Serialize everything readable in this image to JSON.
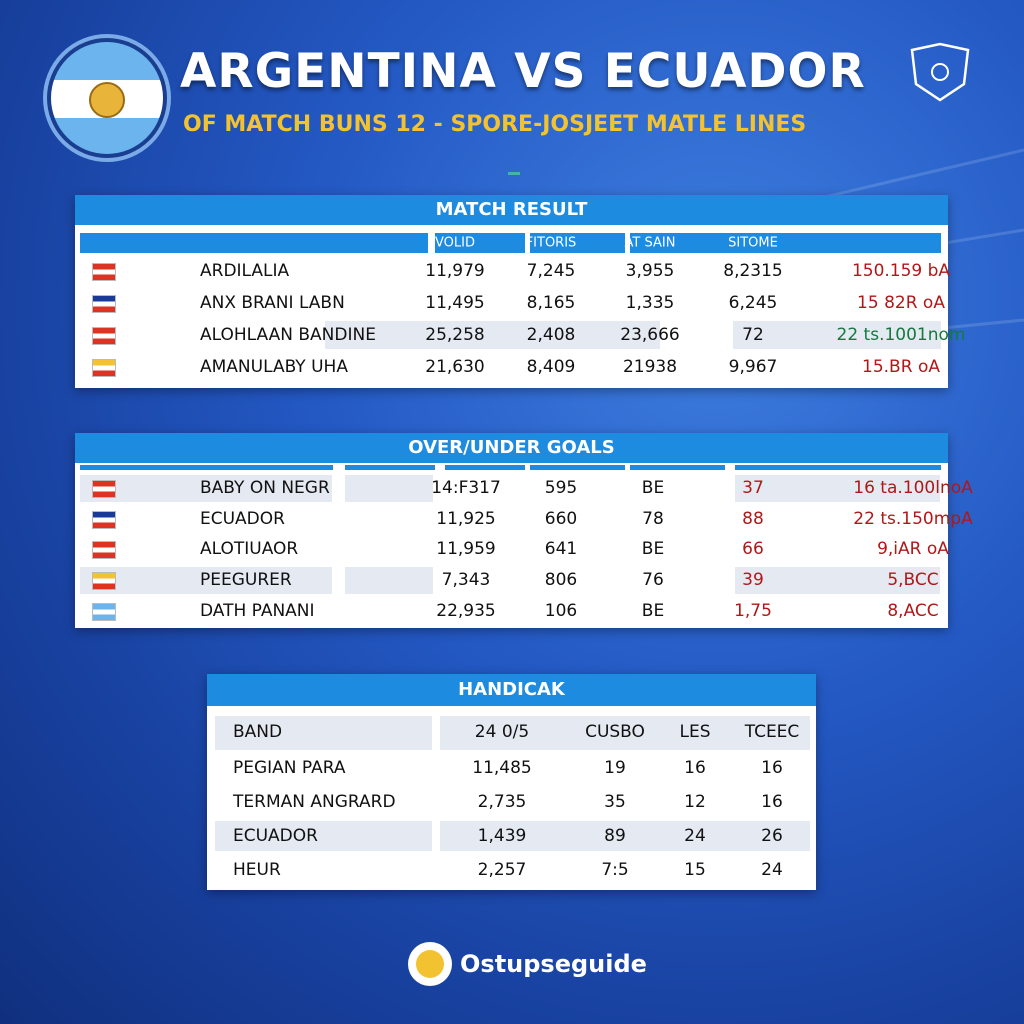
{
  "header": {
    "title": "ARGENTINA VS ECUADOR",
    "subtitle": "OF MATCH BUNS 12 - SPORE-JOSJEET MATLE LINES"
  },
  "tables": [
    {
      "title": "MATCH RESULT",
      "columns": [
        "VOLID",
        "FITORIS",
        "AT SAIN",
        "SITOME"
      ],
      "rows": [
        [
          "ARDILALIA",
          "11,979",
          "7,245",
          "3,955",
          "8,2315",
          "150.159 bA"
        ],
        [
          "ANX BRANI LABN",
          "11,495",
          "8,165",
          "1,335",
          "6,245",
          "15 82R oA"
        ],
        [
          "ALOHLAAN BANDINE",
          "25,258",
          "2,408",
          "23,666",
          "72",
          "22 ts.1001nom"
        ],
        [
          "AMANULABY UHA",
          "21,630",
          "8,409",
          "21938",
          "9,967",
          "15.BR oA"
        ]
      ]
    },
    {
      "title": "OVER/UNDER GOALS",
      "columns": [],
      "rows": [
        [
          "BABY ON NEGR",
          "14:F317",
          "595",
          "BE",
          "37",
          "16 ta.100lnoA"
        ],
        [
          "ECUADOR",
          "11,925",
          "660",
          "78",
          "88",
          "22 ts.150mpA"
        ],
        [
          "ALOTIUAOR",
          "11,959",
          "641",
          "BE",
          "66",
          "9,iAR oA"
        ],
        [
          "PEEGURER",
          "7,343",
          "806",
          "76",
          "39",
          "5,BCC"
        ],
        [
          "DATH PANANI",
          "22,935",
          "106",
          "BE",
          "1,75",
          "8,ACC"
        ]
      ]
    },
    {
      "title": "HANDICAK",
      "columns": [
        "BAND",
        "24 0/5",
        "CUSBO",
        "LES",
        "TCEEC"
      ],
      "rows": [
        [
          "PEGIAN PARA",
          "11,485",
          "19",
          "16",
          "16"
        ],
        [
          "TERMAN ANGRARD",
          "2,735",
          "35",
          "12",
          "16"
        ],
        [
          "ECUADOR",
          "1,439",
          "89",
          "24",
          "26"
        ],
        [
          "HEUR",
          "2,257",
          "7:5",
          "15",
          "24"
        ]
      ]
    }
  ],
  "footer": {
    "brand": "Ostupseguide"
  }
}
